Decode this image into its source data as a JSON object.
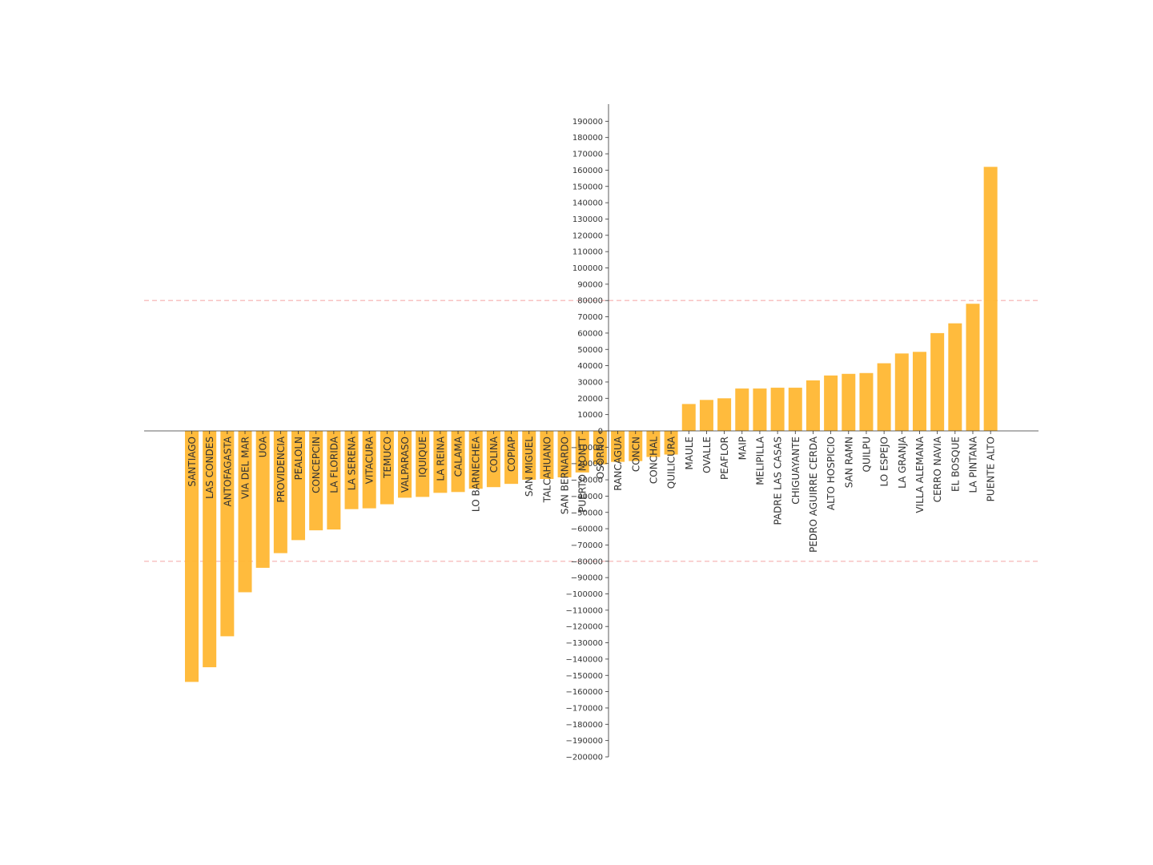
{
  "chart_data": {
    "type": "bar",
    "title": "",
    "xlabel": "",
    "ylabel": "",
    "ylim": [
      -200000,
      200000
    ],
    "yticks_step": 10000,
    "grid": false,
    "bar_color": "#ffb733",
    "axis_color": "#333333",
    "reference_lines": [
      80000,
      -80000
    ],
    "reference_line_color": "#f4a6a6",
    "categories": [
      "SANTIAGO",
      "LAS CONDES",
      "ANTOFAGASTA",
      "VIA DEL MAR",
      "UOA",
      "PROVIDENCIA",
      "PEALOLN",
      "CONCEPCIN",
      "LA FLORIDA",
      "LA SERENA",
      "VITACURA",
      "TEMUCO",
      "VALPARASO",
      "IQUIQUE",
      "LA REINA",
      "CALAMA",
      "LO BARNECHEA",
      "COLINA",
      "COPIAP",
      "SAN MIGUEL",
      "TALCAHUANO",
      "SAN BERNARDO",
      "PUERTO MONTT",
      "OSORNO",
      "RANCAGUA",
      "CONCN",
      "CONCHAL",
      "QUILICURA",
      "MAULE",
      "OVALLE",
      "PEAFLOR",
      "MAIP",
      "MELIPILLA",
      "PADRE LAS CASAS",
      "CHIGUAYANTE",
      "PEDRO AGUIRRE CERDA",
      "ALTO HOSPICIO",
      "SAN RAMN",
      "QUILPU",
      "LO ESPEJO",
      "LA GRANJA",
      "VILLA ALEMANA",
      "CERRO NAVIA",
      "EL BOSQUE",
      "LA PINTANA",
      "PUENTE ALTO"
    ],
    "values": [
      -154000,
      -145000,
      -126000,
      -99000,
      -84000,
      -75000,
      -67000,
      -61000,
      -60500,
      -48000,
      -47500,
      -45000,
      -41000,
      -40500,
      -38000,
      -37500,
      -35500,
      -34500,
      -32500,
      -30000,
      -29500,
      -28500,
      -25500,
      -20500,
      -19000,
      -18500,
      -16000,
      -14500,
      16500,
      19000,
      20000,
      26000,
      26000,
      26500,
      26500,
      31000,
      34000,
      35000,
      35500,
      41500,
      47500,
      48500,
      60000,
      66000,
      78000,
      162000
    ]
  }
}
